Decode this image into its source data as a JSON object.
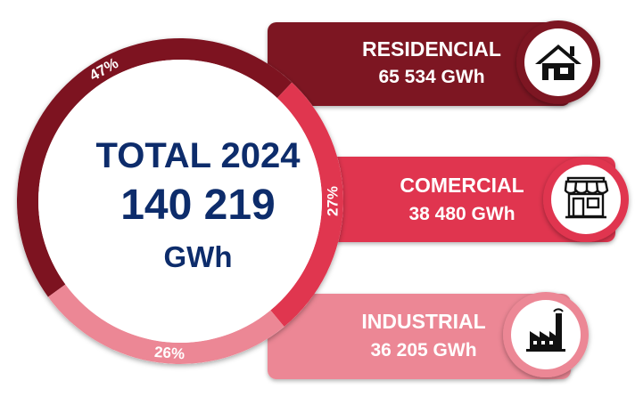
{
  "center": {
    "line1": "TOTAL 2024",
    "line2": "140 219",
    "line3": "GWh"
  },
  "chart_data": {
    "type": "pie",
    "title": "",
    "total_value": 140219,
    "unit": "GWh",
    "slices": [
      {
        "name": "RESIDENCIAL",
        "value": 65534,
        "value_label": "65 534 GWh",
        "percent": 47,
        "percent_label": "47%",
        "color": "#7d1320"
      },
      {
        "name": "COMERCIAL",
        "value": 38480,
        "value_label": "38 480 GWh",
        "percent": 27,
        "percent_label": "27%",
        "color": "#e0364f"
      },
      {
        "name": "INDUSTRIAL",
        "value": 36205,
        "value_label": "36 205 GWh",
        "percent": 26,
        "percent_label": "26%",
        "color": "#ec8795"
      }
    ]
  },
  "bands": [
    {
      "name": "RESIDENCIAL",
      "value_label": "65 534 GWh",
      "icon": "house-icon",
      "color": "#7d1320"
    },
    {
      "name": "COMERCIAL",
      "value_label": "38 480 GWh",
      "icon": "store-icon",
      "color": "#e0364f"
    },
    {
      "name": "INDUSTRIAL",
      "value_label": "36 205 GWh",
      "icon": "factory-icon",
      "color": "#ec8795"
    }
  ]
}
